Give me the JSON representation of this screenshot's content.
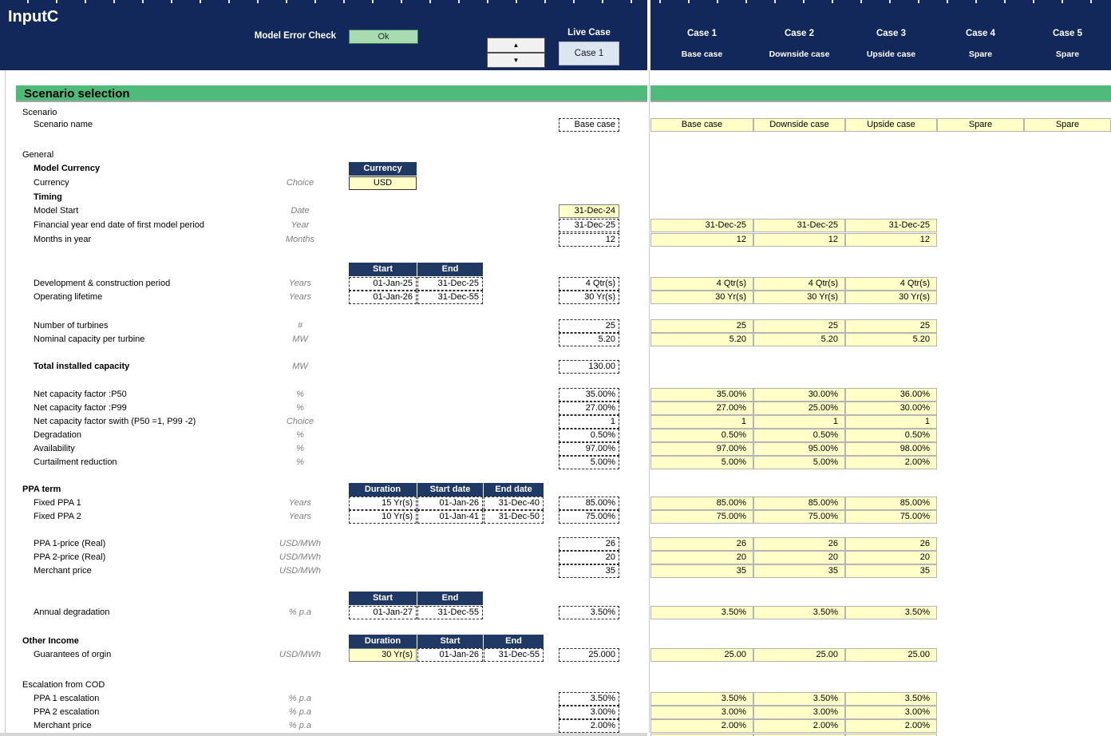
{
  "header": {
    "sheet_title": "InputC",
    "error_check_label": "Model Error Check",
    "error_check_value": "Ok",
    "live_case_label": "Live Case",
    "live_case_value": "Case 1",
    "cases": [
      {
        "name": "Case 1",
        "desc": "Base case"
      },
      {
        "name": "Case 2",
        "desc": "Downside case"
      },
      {
        "name": "Case 3",
        "desc": "Upside case"
      },
      {
        "name": "Case 4",
        "desc": "Spare"
      },
      {
        "name": "Case 5",
        "desc": "Spare"
      }
    ]
  },
  "icons": {
    "up": "▲",
    "down": "▼"
  },
  "banner": {
    "title": "Scenario selection"
  },
  "colors": {
    "navy_band": "#12275a",
    "mini_header_navy": "#1f3864",
    "banner_green": "#4fbb7b",
    "input_yellow": "#ffffc8",
    "ok_green": "#a9dbb2",
    "live_case_blue": "#dce6f1"
  },
  "rows": [
    {
      "kind": "section",
      "label": "Scenario"
    },
    {
      "kind": "item",
      "label": "Scenario name",
      "live": {
        "v": "Base case",
        "style": "dashed"
      },
      "cases": {
        "values": [
          "Base case",
          "Downside case",
          "Upside case",
          "Spare",
          "Spare"
        ],
        "center": true
      }
    },
    {
      "kind": "section",
      "label": "General"
    },
    {
      "kind": "item",
      "bold": true,
      "label": "Model Currency",
      "mid": {
        "header": [
          "Currency"
        ]
      }
    },
    {
      "kind": "item",
      "label": "Currency",
      "unit": "Choice",
      "mid": {
        "inputs": [
          {
            "v": "USD",
            "style": "yellowCenter"
          }
        ]
      }
    },
    {
      "kind": "item",
      "bold": true,
      "label": "Timing"
    },
    {
      "kind": "item",
      "label": "Model Start",
      "unit": "Date",
      "live": {
        "v": "31-Dec-24",
        "style": "yellow"
      }
    },
    {
      "kind": "item",
      "label": "Financial year end date of first model period",
      "unit": "Year",
      "live": {
        "v": "31-Dec-25",
        "style": "dashed"
      },
      "cases": {
        "values": [
          "31-Dec-25",
          "31-Dec-25",
          "31-Dec-25"
        ]
      }
    },
    {
      "kind": "item",
      "label": "Months in year",
      "unit": "Months",
      "live": {
        "v": "12",
        "style": "dashed"
      },
      "cases": {
        "values": [
          "12",
          "12",
          "12"
        ]
      }
    },
    {
      "kind": "midheader",
      "mid": {
        "header": [
          "Start",
          "End"
        ]
      }
    },
    {
      "kind": "item",
      "label": "Development & construction period",
      "unit": "Years",
      "mid": {
        "inputs": [
          {
            "v": "01-Jan-25"
          },
          {
            "v": "31-Dec-25"
          }
        ]
      },
      "live": {
        "v": "4 Qtr(s)",
        "style": "dashed"
      },
      "cases": {
        "values": [
          "4 Qtr(s)",
          "4 Qtr(s)",
          "4 Qtr(s)"
        ]
      }
    },
    {
      "kind": "item",
      "label": "Operating lifetime",
      "unit": "Years",
      "mid": {
        "inputs": [
          {
            "v": "01-Jan-26"
          },
          {
            "v": "31-Dec-55"
          }
        ]
      },
      "live": {
        "v": "30 Yr(s)",
        "style": "dashed"
      },
      "cases": {
        "values": [
          "30 Yr(s)",
          "30 Yr(s)",
          "30 Yr(s)"
        ]
      }
    },
    {
      "kind": "item",
      "label": "Number of turbines",
      "unit": "#",
      "live": {
        "v": "25",
        "style": "dashed"
      },
      "cases": {
        "values": [
          "25",
          "25",
          "25"
        ]
      }
    },
    {
      "kind": "item",
      "label": "Nominal capacity per turbine",
      "unit": "MW",
      "live": {
        "v": "5.20",
        "style": "dashed"
      },
      "cases": {
        "values": [
          "5.20",
          "5.20",
          "5.20"
        ]
      }
    },
    {
      "kind": "item",
      "bold": true,
      "label": "Total installed capacity",
      "unit": "MW",
      "live": {
        "v": "130.00",
        "style": "dashed"
      }
    },
    {
      "kind": "item",
      "label": "Net capacity factor :P50",
      "unit": "%",
      "live": {
        "v": "35.00%",
        "style": "dashed"
      },
      "cases": {
        "values": [
          "35.00%",
          "30.00%",
          "36.00%"
        ]
      }
    },
    {
      "kind": "item",
      "label": "Net capacity factor :P99",
      "unit": "%",
      "live": {
        "v": "27.00%",
        "style": "dashed"
      },
      "cases": {
        "values": [
          "27.00%",
          "25.00%",
          "30.00%"
        ]
      }
    },
    {
      "kind": "item",
      "label": "Net capacity factor swith (P50 =1, P99 -2)",
      "unit": "Choice",
      "live": {
        "v": "1",
        "style": "dashed"
      },
      "cases": {
        "values": [
          "1",
          "1",
          "1"
        ]
      }
    },
    {
      "kind": "item",
      "label": "Degradation",
      "unit": "%",
      "live": {
        "v": "0.50%",
        "style": "dashed"
      },
      "cases": {
        "values": [
          "0.50%",
          "0.50%",
          "0.50%"
        ]
      }
    },
    {
      "kind": "item",
      "label": "Availability",
      "unit": "%",
      "live": {
        "v": "97.00%",
        "style": "dashed"
      },
      "cases": {
        "values": [
          "97.00%",
          "95.00%",
          "98.00%"
        ]
      }
    },
    {
      "kind": "item",
      "label": "Curtailment reduction",
      "unit": "%",
      "live": {
        "v": "5.00%",
        "style": "dashed"
      },
      "cases": {
        "values": [
          "5.00%",
          "5.00%",
          "2.00%"
        ]
      }
    },
    {
      "kind": "section",
      "bold": true,
      "label": "PPA term",
      "mid": {
        "header": [
          "Duration",
          "Start date",
          "End date"
        ]
      }
    },
    {
      "kind": "item",
      "label": "Fixed PPA 1",
      "unit": "Years",
      "mid": {
        "inputs": [
          {
            "v": "15 Yr(s)"
          },
          {
            "v": "01-Jan-26"
          },
          {
            "v": "31-Dec-40"
          }
        ]
      },
      "live": {
        "v": "85.00%",
        "style": "dashed"
      },
      "cases": {
        "values": [
          "85.00%",
          "85.00%",
          "85.00%"
        ]
      }
    },
    {
      "kind": "item",
      "label": "Fixed PPA 2",
      "unit": "Years",
      "mid": {
        "inputs": [
          {
            "v": "10 Yr(s)"
          },
          {
            "v": "01-Jan-41"
          },
          {
            "v": "31-Dec-50"
          }
        ]
      },
      "live": {
        "v": "75.00%",
        "style": "dashed"
      },
      "cases": {
        "values": [
          "75.00%",
          "75.00%",
          "75.00%"
        ]
      }
    },
    {
      "kind": "item",
      "label": "PPA 1-price (Real)",
      "unit": "USD/MWh",
      "live": {
        "v": "26",
        "style": "dashed"
      },
      "cases": {
        "values": [
          "26",
          "26",
          "26"
        ]
      }
    },
    {
      "kind": "item",
      "label": "PPA 2-price (Real)",
      "unit": "USD/MWh",
      "live": {
        "v": "20",
        "style": "dashed"
      },
      "cases": {
        "values": [
          "20",
          "20",
          "20"
        ]
      }
    },
    {
      "kind": "item",
      "label": "Merchant price",
      "unit": "USD/MWh",
      "live": {
        "v": "35",
        "style": "dashed"
      },
      "cases": {
        "values": [
          "35",
          "35",
          "35"
        ]
      }
    },
    {
      "kind": "midheader",
      "mid": {
        "header": [
          "Start",
          "End"
        ]
      }
    },
    {
      "kind": "item",
      "label": "Annual degradation",
      "unit": "% p.a",
      "mid": {
        "inputs": [
          {
            "v": "01-Jan-27"
          },
          {
            "v": "31-Dec-55"
          }
        ]
      },
      "live": {
        "v": "3.50%",
        "style": "dashed"
      },
      "cases": {
        "values": [
          "3.50%",
          "3.50%",
          "3.50%"
        ]
      }
    },
    {
      "kind": "section",
      "bold": true,
      "label": "Other Income",
      "mid": {
        "header": [
          "Duration",
          "Start",
          "End"
        ]
      }
    },
    {
      "kind": "item",
      "label": "Guarantees of orgin",
      "unit": "USD/MWh",
      "mid": {
        "inputs": [
          {
            "v": "30 Yr(s)",
            "style": "yellow"
          },
          {
            "v": "01-Jan-26"
          },
          {
            "v": "31-Dec-55"
          }
        ]
      },
      "live": {
        "v": "25.000",
        "style": "dashed"
      },
      "cases": {
        "values": [
          "25.00",
          "25.00",
          "25.00"
        ]
      }
    },
    {
      "kind": "section",
      "label": "Escalation from COD"
    },
    {
      "kind": "item",
      "label": "PPA 1 escalation",
      "unit": "% p.a",
      "live": {
        "v": "3.50%",
        "style": "dashed"
      },
      "cases": {
        "values": [
          "3.50%",
          "3.50%",
          "3.50%"
        ]
      }
    },
    {
      "kind": "item",
      "label": "PPA 2 escalation",
      "unit": "% p.a",
      "live": {
        "v": "3.00%",
        "style": "dashed"
      },
      "cases": {
        "values": [
          "3.00%",
          "3.00%",
          "3.00%"
        ]
      }
    },
    {
      "kind": "item",
      "label": "Merchant price",
      "unit": "% p.a",
      "live": {
        "v": "2.00%",
        "style": "dashed"
      },
      "cases": {
        "values": [
          "2.00%",
          "2.00%",
          "2.00%"
        ]
      }
    }
  ]
}
